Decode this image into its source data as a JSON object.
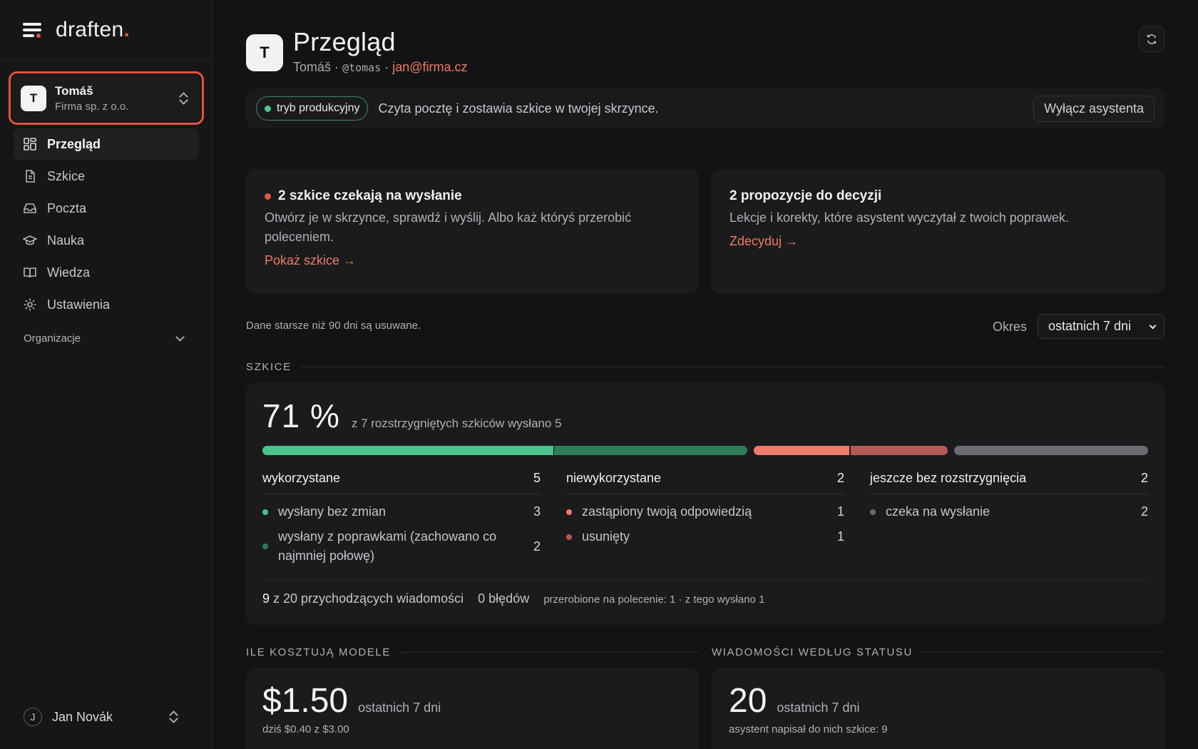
{
  "brand": {
    "name": "draften",
    "dot": "."
  },
  "account": {
    "initial": "T",
    "name": "Tomáš",
    "org": "Firma sp. z o.o."
  },
  "nav": [
    {
      "label": "Przegląd",
      "icon": "dashboard-icon",
      "active": true
    },
    {
      "label": "Szkice",
      "icon": "document-icon"
    },
    {
      "label": "Poczta",
      "icon": "inbox-icon"
    },
    {
      "label": "Nauka",
      "icon": "graduation-cap-icon"
    },
    {
      "label": "Wiedza",
      "icon": "book-icon"
    },
    {
      "label": "Ustawienia",
      "icon": "gear-icon"
    }
  ],
  "organizations_label": "Organizacje",
  "user": {
    "initial": "J",
    "name": "Jan Novák"
  },
  "header": {
    "initial": "T",
    "title": "Przegląd",
    "name": "Tomáš",
    "sep": "·",
    "handle": "@tomas",
    "email": "jan@firma.cz"
  },
  "mode": {
    "badge": "tryb produkcyjny",
    "description": "Czyta pocztę i zostawia szkice w twojej skrzynce.",
    "disable_button": "Wyłącz asystenta"
  },
  "alerts": [
    {
      "title": "2 szkice czekają na wysłanie",
      "description": "Otwórz je w skrzynce, sprawdź i wyślij. Albo każ któryś przerobić poleceniem.",
      "link": "Pokaż szkice →"
    },
    {
      "title": "2 propozycje do decyzji",
      "description": "Lekcje i korekty, które asystent wyczytał z twoich poprawek.",
      "link": "Zdecyduj →"
    }
  ],
  "retention_note": "Dane starsze niż 90 dni są usuwane.",
  "period": {
    "label": "Okres",
    "value": "ostatnich 7 dni"
  },
  "drafts": {
    "section": "SZKICE",
    "percent": "71 %",
    "percent_desc": "z 7 rozstrzygniętych szkiców wysłano 5",
    "columns": [
      {
        "title": "wykorzystane",
        "count": "5",
        "rows": [
          {
            "label": "wysłany bez zmian",
            "count": "3"
          },
          {
            "label": "wysłany z poprawkami (zachowano co najmniej połowę)",
            "count": "2"
          }
        ]
      },
      {
        "title": "niewykorzystane",
        "count": "2",
        "rows": [
          {
            "label": "zastąpiony twoją odpowiedzią",
            "count": "1"
          },
          {
            "label": "usunięty",
            "count": "1"
          }
        ]
      },
      {
        "title": "jeszcze bez rozstrzygnięcia",
        "count": "2",
        "rows": [
          {
            "label": "czeka na wysłanie",
            "count": "2"
          }
        ]
      }
    ],
    "summary": {
      "handled": "9",
      "handled_rest": "z 20 przychodzących wiadomości",
      "errors": "0 błędów",
      "reworked": "przerobione na polecenie: 1 · z tego wysłano 1"
    }
  },
  "costs": {
    "section": "ILE KOSZTUJĄ MODELE",
    "value": "$1.50",
    "period": "ostatnich 7 dni",
    "sub": "dziś $0.40 z $3.00"
  },
  "messages": {
    "section": "WIADOMOŚCI WEDŁUG STATUSU",
    "value": "20",
    "period": "ostatnich 7 dni",
    "sub": "asystent napisał do nich szkice: 9"
  },
  "colors": {
    "accent": "#e5533d",
    "link": "#f07a5f",
    "green": "#4cc38a",
    "green_dark": "#2f7d57",
    "red": "#f07a6a",
    "red_dark": "#b65a55",
    "grey": "#6b6b72"
  }
}
